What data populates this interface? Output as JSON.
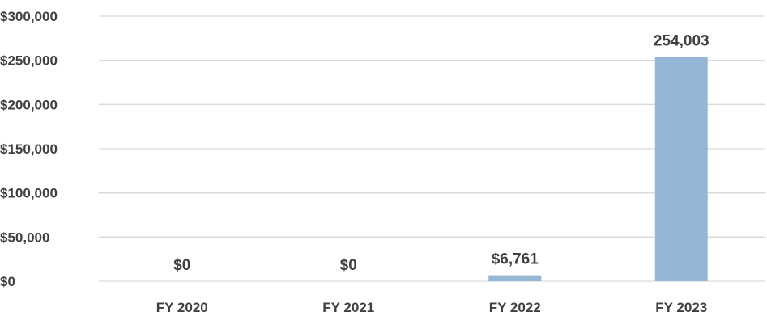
{
  "chart_data": {
    "type": "bar",
    "categories": [
      "FY 2020",
      "FY 2021",
      "FY 2022",
      "FY 2023"
    ],
    "values": [
      0,
      0,
      6761,
      254003
    ],
    "data_labels": [
      "$0",
      "$0",
      "$6,761",
      "254,003"
    ],
    "y_ticks": [
      0,
      50000,
      100000,
      150000,
      200000,
      250000,
      300000
    ],
    "y_tick_labels": [
      "$0",
      "$50,000",
      "$100,000",
      "$150,000",
      "$200,000",
      "$250,000",
      "$300,000"
    ],
    "ylim": [
      0,
      300000
    ],
    "title": "",
    "xlabel": "",
    "ylabel": "",
    "grid": true,
    "legend": "none",
    "bar_color": "#95b7d6",
    "text_color": "#404040",
    "grid_color": "#d9d9d9"
  }
}
